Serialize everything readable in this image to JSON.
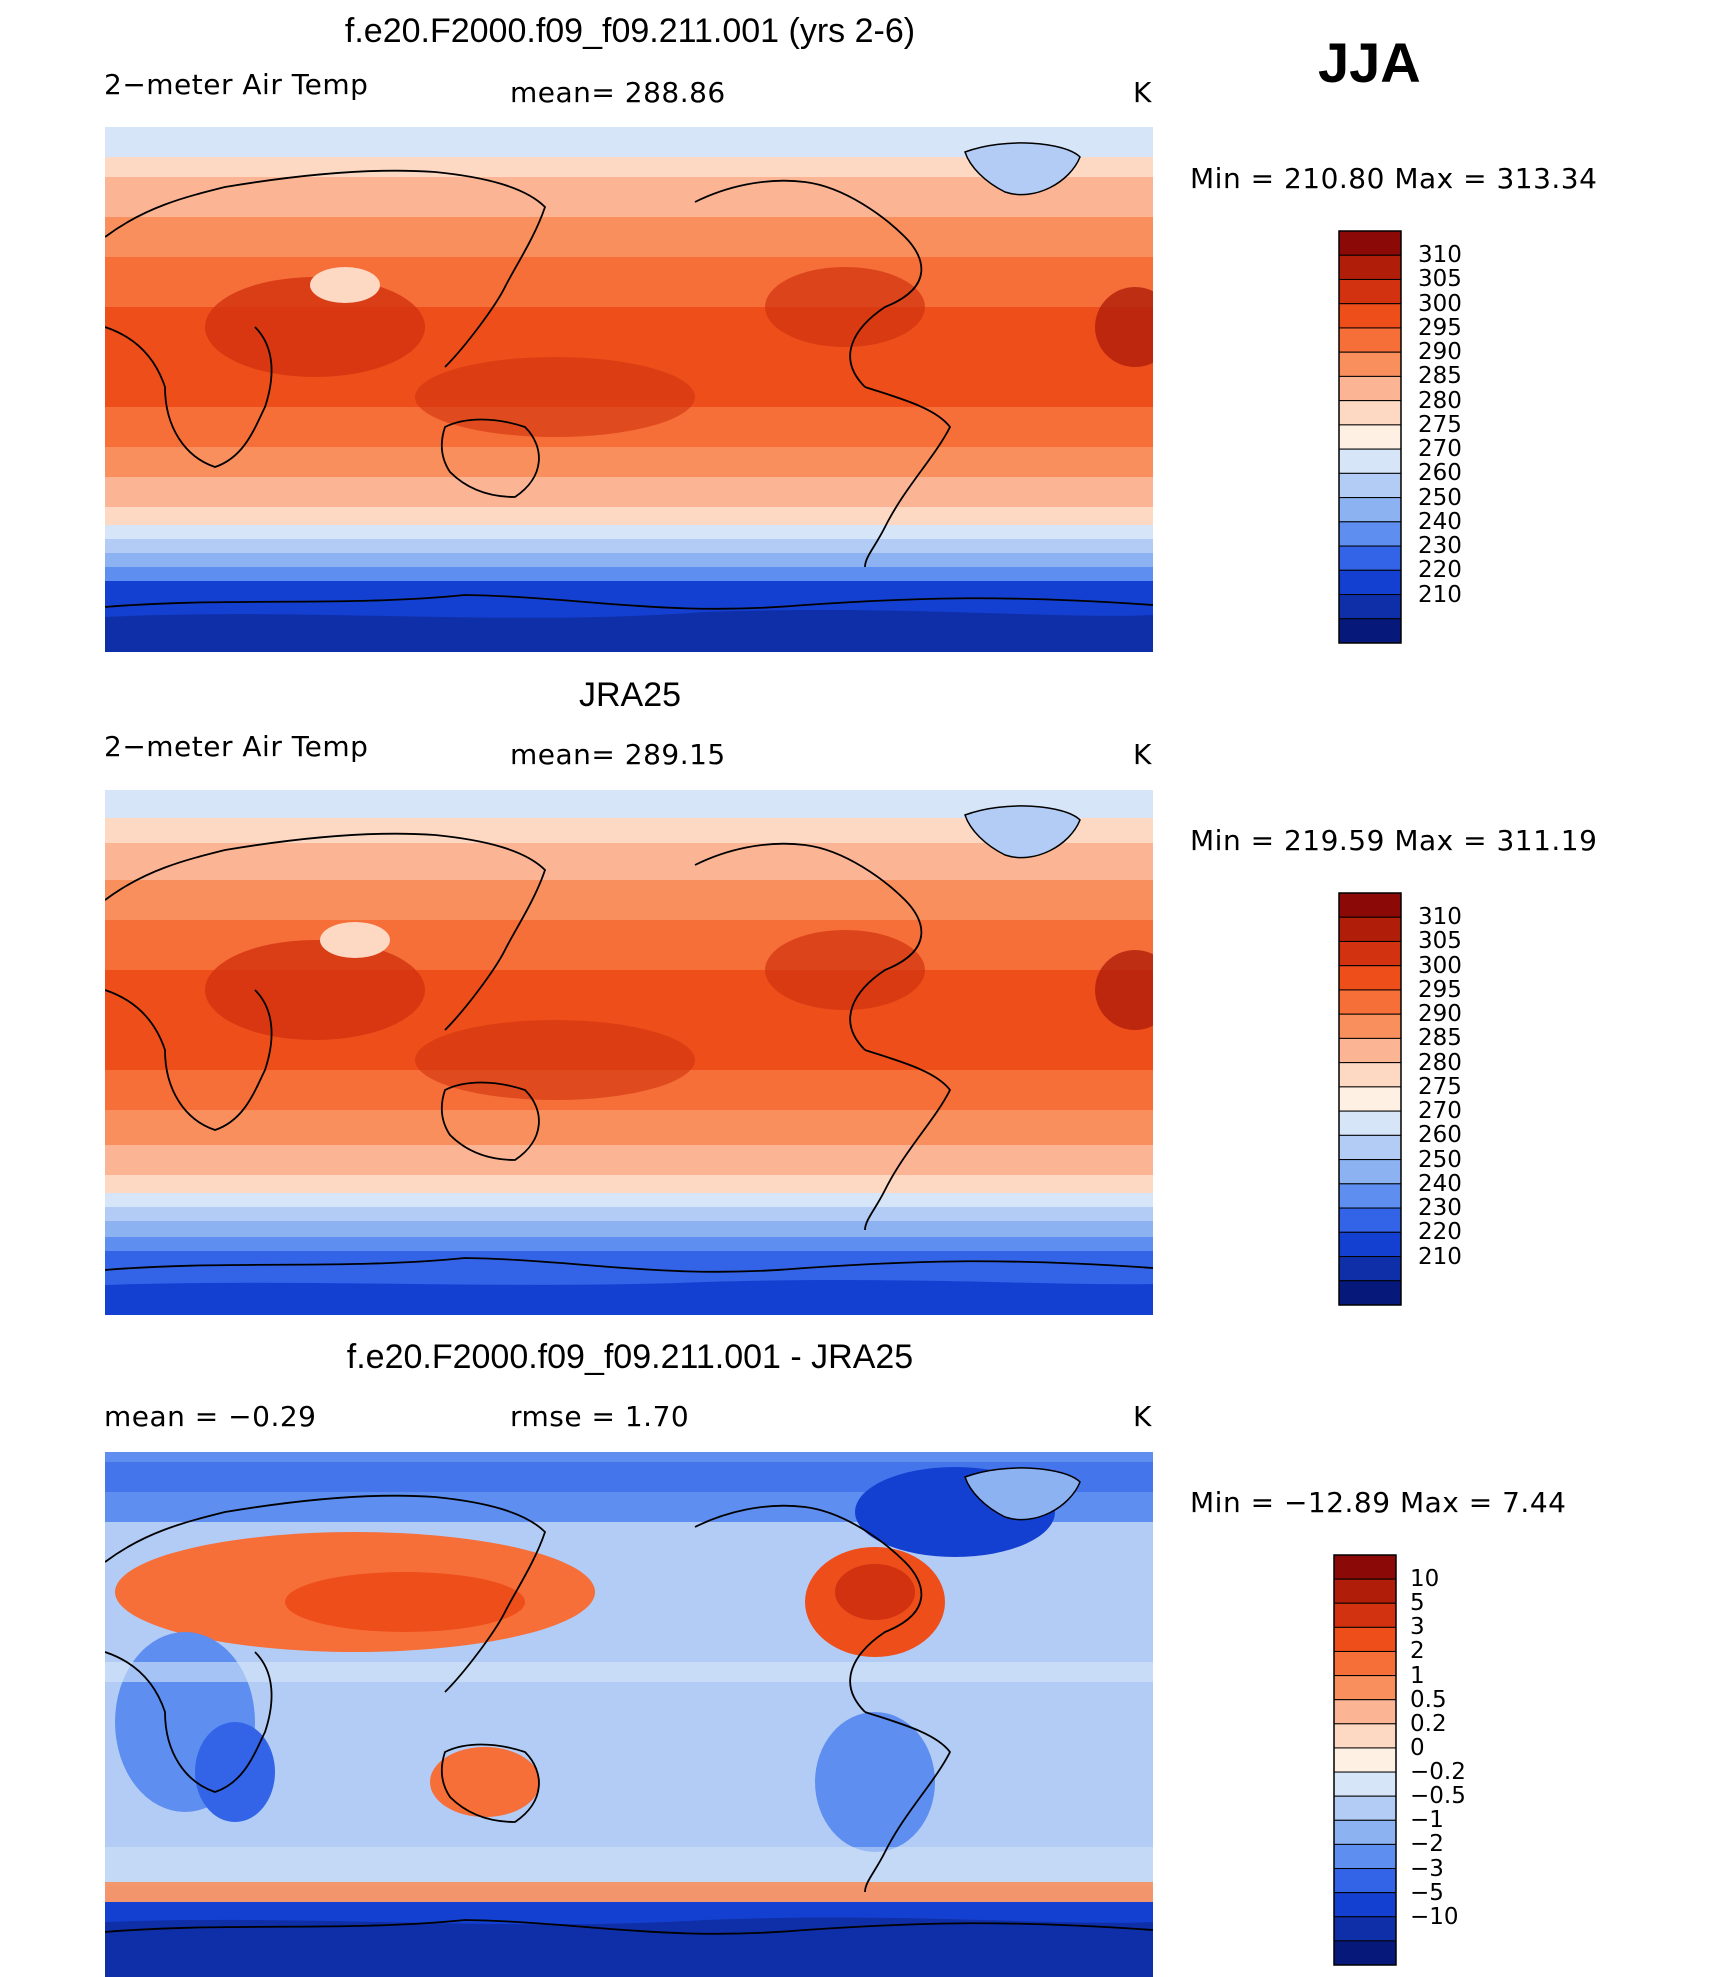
{
  "season": "JJA",
  "panels": [
    {
      "title": "f.e20.F2000.f09_f09.211.001 (yrs 2-6)",
      "left_label": "2−meter Air Temp",
      "center_label": "mean=  288.86",
      "units": "K",
      "minmax": "Min  =  210.80  Max  =  313.34",
      "colorbar_levels": [
        "310",
        "305",
        "300",
        "295",
        "290",
        "285",
        "280",
        "275",
        "270",
        "260",
        "250",
        "240",
        "230",
        "220",
        "210"
      ],
      "colorbar_colors": [
        "#8b0a07",
        "#b01e0a",
        "#d2320f",
        "#ee4e1a",
        "#f66e38",
        "#f88f5d",
        "#fbb595",
        "#fdd9c4",
        "#fff0e4",
        "#d6e6f8",
        "#b3ccf5",
        "#8cb2f2",
        "#5d8ef0",
        "#3364e8",
        "#1440d2",
        "#0f2fa8",
        "#06197a"
      ]
    },
    {
      "title": "JRA25",
      "left_label": "2−meter Air Temp",
      "center_label": "mean=  289.15",
      "units": "K",
      "minmax": "Min  =  219.59  Max  =  311.19",
      "colorbar_levels": [
        "310",
        "305",
        "300",
        "295",
        "290",
        "285",
        "280",
        "275",
        "270",
        "260",
        "250",
        "240",
        "230",
        "220",
        "210"
      ],
      "colorbar_colors": [
        "#8b0a07",
        "#b01e0a",
        "#d2320f",
        "#ee4e1a",
        "#f66e38",
        "#f88f5d",
        "#fbb595",
        "#fdd9c4",
        "#fff0e4",
        "#d6e6f8",
        "#b3ccf5",
        "#8cb2f2",
        "#5d8ef0",
        "#3364e8",
        "#1440d2",
        "#0f2fa8",
        "#06197a"
      ]
    },
    {
      "title": "f.e20.F2000.f09_f09.211.001 - JRA25",
      "left_label": "mean =    −0.29",
      "center_label": "rmse =     1.70",
      "units": "K",
      "minmax": "Min  =  −12.89  Max  =     7.44",
      "colorbar_levels": [
        "10",
        "5",
        "3",
        "2",
        "1",
        "0.5",
        "0.2",
        "0",
        "−0.2",
        "−0.5",
        "−1",
        "−2",
        "−3",
        "−5",
        "−10"
      ],
      "colorbar_colors": [
        "#8b0a07",
        "#b01e0a",
        "#d2320f",
        "#ee4e1a",
        "#f66e38",
        "#f88f5d",
        "#fbb595",
        "#fdd9c4",
        "#fff0e4",
        "#d6e6f8",
        "#b3ccf5",
        "#8cb2f2",
        "#5d8ef0",
        "#3364e8",
        "#1440d2",
        "#0f2fa8",
        "#06197a"
      ]
    }
  ]
}
